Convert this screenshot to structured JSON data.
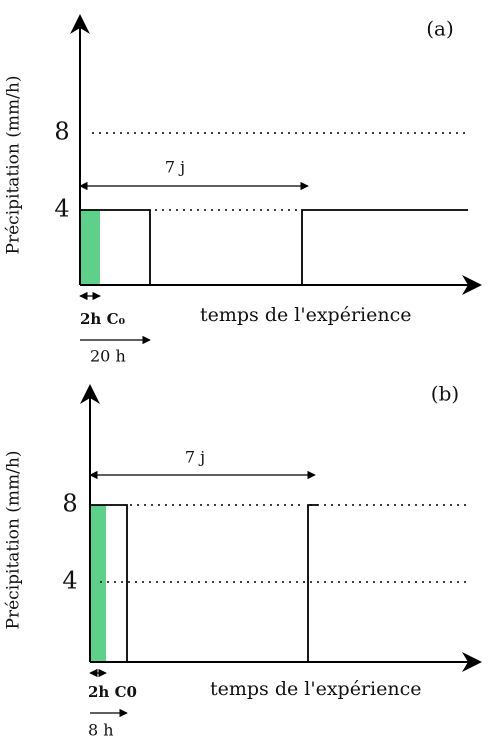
{
  "panels": [
    {
      "tag": "(a)",
      "y_axis_label": "Précipitation (mm/h)",
      "y_labels": [
        "8",
        "4"
      ],
      "x_axis_label": "temps de l'expérience",
      "period_label": "7 j",
      "pulse_label": "2h C₀",
      "cycle_label": "20 h"
    },
    {
      "tag": "(b)",
      "y_axis_label": "Précipitation (mm/h)",
      "y_labels": [
        "8",
        "4"
      ],
      "x_axis_label": "temps de l'expérience",
      "period_label": "7 j",
      "pulse_label": "2h C0",
      "cycle_label": "8 h"
    }
  ]
}
